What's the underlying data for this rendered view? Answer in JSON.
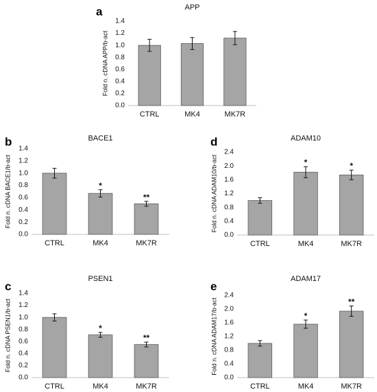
{
  "chart_data": [
    {
      "panel": "a",
      "type": "bar",
      "title": "APP",
      "ylabel": "Fold n. cDNA APP/b-act",
      "categories": [
        "CTRL",
        "MK4",
        "MK7R"
      ],
      "values": [
        1.0,
        1.03,
        1.12
      ],
      "errors": [
        0.1,
        0.1,
        0.11
      ],
      "annotations": [
        "",
        "",
        ""
      ],
      "ylim": [
        0,
        1.4
      ],
      "yticks": [
        "0.0",
        "0.2",
        "0.4",
        "0.6",
        "0.8",
        "1.0",
        "1.2",
        "1.4"
      ],
      "grid": false,
      "bar_color": "#a5a5a5"
    },
    {
      "panel": "b",
      "type": "bar",
      "title": "BACE1",
      "ylabel": "Fold n. cDNA BACE1/b-act",
      "categories": [
        "CTRL",
        "MK4",
        "MK7R"
      ],
      "values": [
        1.0,
        0.67,
        0.5
      ],
      "errors": [
        0.08,
        0.06,
        0.04
      ],
      "annotations": [
        "",
        "*",
        "**"
      ],
      "ylim": [
        0,
        1.4
      ],
      "yticks": [
        "0.0",
        "0.2",
        "0.4",
        "0.6",
        "0.8",
        "1.0",
        "1.2",
        "1.4"
      ],
      "grid": false,
      "bar_color": "#a5a5a5"
    },
    {
      "panel": "c",
      "type": "bar",
      "title": "PSEN1",
      "ylabel": "Fold n. cDNA PSEN1/b-act",
      "categories": [
        "CTRL",
        "MK4",
        "MK7R"
      ],
      "values": [
        1.0,
        0.71,
        0.55
      ],
      "errors": [
        0.06,
        0.04,
        0.04
      ],
      "annotations": [
        "",
        "*",
        "**"
      ],
      "ylim": [
        0,
        1.4
      ],
      "yticks": [
        "0.0",
        "0.2",
        "0.4",
        "0.6",
        "0.8",
        "1.0",
        "1.2",
        "1.4"
      ],
      "grid": false,
      "bar_color": "#a5a5a5"
    },
    {
      "panel": "d",
      "type": "bar",
      "title": "ADAM10",
      "ylabel": "Fold n. cDNA ADAM10/b-act",
      "categories": [
        "CTRL",
        "MK4",
        "MK7R"
      ],
      "values": [
        1.0,
        1.82,
        1.74
      ],
      "errors": [
        0.08,
        0.16,
        0.14
      ],
      "annotations": [
        "",
        "*",
        "*"
      ],
      "ylim": [
        0,
        2.4
      ],
      "yticks": [
        "0.0",
        "0.4",
        "0.8",
        "1.2",
        "1.6",
        "2.0",
        "2.4"
      ],
      "grid": false,
      "bar_color": "#a5a5a5"
    },
    {
      "panel": "e",
      "type": "bar",
      "title": "ADAM17",
      "ylabel": "Fold n. cDNA ADAM17/b-act",
      "categories": [
        "CTRL",
        "MK4",
        "MK7R"
      ],
      "values": [
        1.0,
        1.56,
        1.94
      ],
      "errors": [
        0.08,
        0.12,
        0.15
      ],
      "annotations": [
        "",
        "*",
        "**"
      ],
      "ylim": [
        0,
        2.4
      ],
      "yticks": [
        "0.0",
        "0.4",
        "0.8",
        "1.2",
        "1.6",
        "2.0",
        "2.4"
      ],
      "grid": false,
      "bar_color": "#a5a5a5"
    }
  ]
}
